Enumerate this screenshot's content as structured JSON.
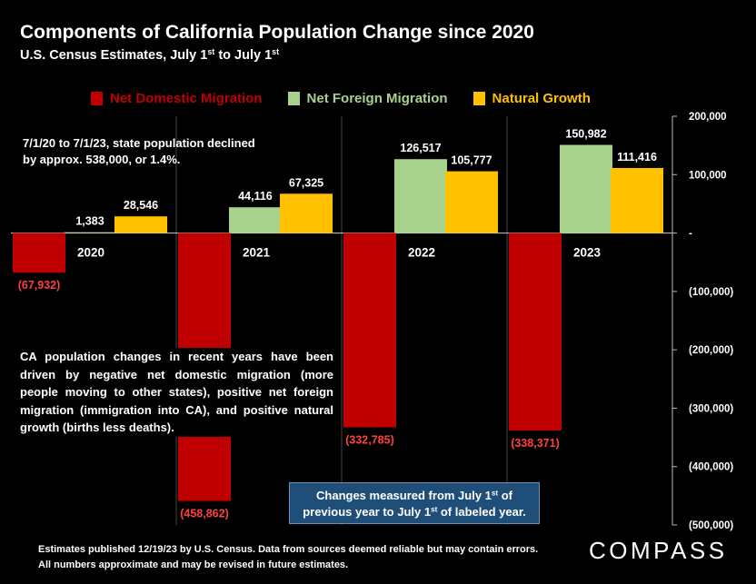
{
  "title": "Components of California Population Change since 2020",
  "subtitle": {
    "text": "U.S. Census Estimates, July 1",
    "sup1": "st",
    "mid": " to July 1",
    "sup2": "st"
  },
  "notes": {
    "top": "7/1/20 to 7/1/23, state population declined by approx. 538,000, or 1.4%.",
    "middle": "CA population changes in recent years have been driven by negative net domestic migration (more people moving to other states), positive net foreign migration (immigration into CA), and positive natural growth (births less deaths)."
  },
  "callout": {
    "line1_a": "Changes measured from July 1",
    "line1_sup": "st",
    "line1_b": " of",
    "line2_a": "previous year to July 1",
    "line2_sup": "st",
    "line2_b": " of labeled year."
  },
  "footer": "Estimates published 12/19/23 by U.S. Census. Data from sources deemed reliable but may contain errors. All numbers approximate and may be revised in future estimates.",
  "logo": "COMPASS",
  "colors": {
    "domestic": "#c00000",
    "foreign": "#a9d18e",
    "natural": "#ffc000",
    "negative_label": "#ff4040",
    "gridline": "#444444"
  },
  "chart_data": {
    "type": "bar",
    "title": "Components of California Population Change since 2020",
    "categories": [
      "2020",
      "2021",
      "2022",
      "2023"
    ],
    "series": [
      {
        "name": "Net Domestic Migration",
        "key": "domestic",
        "values": [
          -67932,
          -458862,
          -332785,
          -338371
        ],
        "labels": [
          "(67,932)",
          "(458,862)",
          "(332,785)",
          "(338,371)"
        ]
      },
      {
        "name": "Net Foreign Migration",
        "key": "foreign",
        "values": [
          1383,
          44116,
          126517,
          150982
        ],
        "labels": [
          "1,383",
          "44,116",
          "126,517",
          "150,982"
        ]
      },
      {
        "name": "Natural Growth",
        "key": "natural",
        "values": [
          28546,
          67325,
          105777,
          111416
        ],
        "labels": [
          "28,546",
          "67,325",
          "105,777",
          "111,416"
        ]
      }
    ],
    "ylim": [
      -500000,
      200000
    ],
    "yticks": [
      200000,
      100000,
      0,
      -100000,
      -200000,
      -300000,
      -400000,
      -500000
    ],
    "ytick_labels": [
      "200,000",
      "100,000",
      "-",
      "(100,000)",
      "(200,000)",
      "(300,000)",
      "(400,000)",
      "(500,000)"
    ],
    "yaxis_position": "right",
    "legend_position": "top"
  }
}
